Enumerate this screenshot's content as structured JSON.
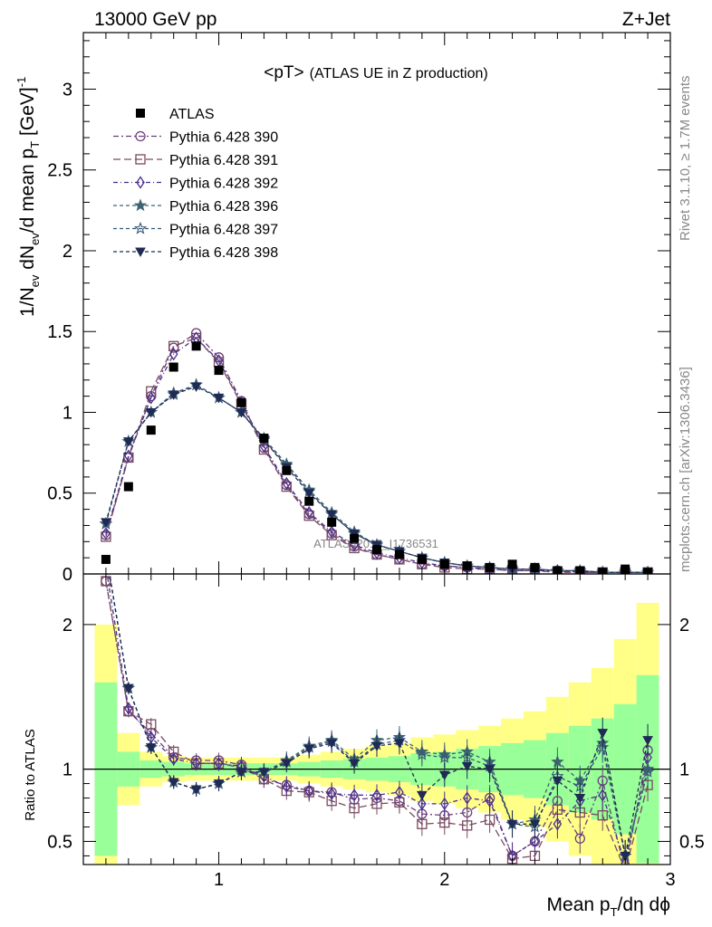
{
  "header": {
    "left": "13000 GeV pp",
    "right": "Z+Jet"
  },
  "side_labels": {
    "rivet": "Rivet 3.1.10, ≥ 1.7M events",
    "mcplots": "mcplots.cern.ch [arXiv:1306.3436]"
  },
  "watermark": "ATLAS_2019_I1736531",
  "colors": {
    "band_inner": "#99ff99",
    "band_outer": "#ffff88",
    "data": "#000000",
    "s390": "#6b3f7a",
    "s391": "#7a4a5f",
    "s392": "#4a2f8a",
    "s396": "#3d6470",
    "s397": "#3a5a78",
    "s398": "#1f2a55"
  },
  "chart_data": [
    {
      "type": "line",
      "title": "<pT>",
      "title_suffix": "(ATLAS UE in Z production)",
      "ylabel_parts": {
        "a": "1/N",
        "b": "ev",
        "c": " dN",
        "d": "ev",
        "e": "/d mean p",
        "f": "T",
        "g": " [GeV]",
        "h": "-1"
      },
      "xlim": [
        0.4,
        3.0
      ],
      "ylim": [
        0,
        3.35
      ],
      "ytick_labels": [
        "0",
        "0.5",
        "1",
        "1.5",
        "2",
        "2.5",
        "3"
      ],
      "yticks": [
        0,
        0.5,
        1,
        1.5,
        2,
        2.5,
        3
      ],
      "x": [
        0.5,
        0.6,
        0.7,
        0.8,
        0.9,
        1.0,
        1.1,
        1.2,
        1.3,
        1.4,
        1.5,
        1.6,
        1.7,
        1.8,
        1.9,
        2.0,
        2.1,
        2.2,
        2.3,
        2.4,
        2.5,
        2.6,
        2.7,
        2.8,
        2.9
      ],
      "data": {
        "name": "ATLAS",
        "values": [
          0.09,
          0.54,
          0.89,
          1.28,
          1.41,
          1.26,
          1.06,
          0.84,
          0.64,
          0.45,
          0.32,
          0.22,
          0.15,
          0.12,
          0.09,
          0.06,
          0.05,
          0.04,
          0.06,
          0.04,
          0.02,
          0.02,
          0.01,
          0.03,
          0.01
        ]
      },
      "series": [
        {
          "name": "Pythia 6.428 390",
          "marker": "circle-open",
          "dash": "6,3,2,3",
          "colorKey": "s390",
          "values": [
            0.24,
            0.72,
            1.1,
            1.4,
            1.49,
            1.34,
            1.07,
            0.78,
            0.55,
            0.37,
            0.25,
            0.17,
            0.12,
            0.09,
            0.06,
            0.05,
            0.04,
            0.03,
            0.02,
            0.02,
            0.02,
            0.01,
            0.01,
            0.01,
            0.01
          ]
        },
        {
          "name": "Pythia 6.428 391",
          "marker": "square-open",
          "dash": "8,4",
          "colorKey": "s391",
          "values": [
            0.23,
            0.72,
            1.13,
            1.41,
            1.46,
            1.31,
            1.05,
            0.77,
            0.54,
            0.36,
            0.24,
            0.16,
            0.12,
            0.09,
            0.06,
            0.04,
            0.03,
            0.03,
            0.02,
            0.02,
            0.01,
            0.01,
            0.01,
            0.01,
            0.01
          ]
        },
        {
          "name": "Pythia 6.428 392",
          "marker": "diamond-open",
          "dash": "5,3,1,3",
          "colorKey": "s392",
          "values": [
            0.25,
            0.73,
            1.09,
            1.36,
            1.46,
            1.32,
            1.06,
            0.79,
            0.56,
            0.38,
            0.26,
            0.18,
            0.13,
            0.1,
            0.07,
            0.05,
            0.04,
            0.03,
            0.02,
            0.02,
            0.02,
            0.01,
            0.01,
            0.01,
            0.01
          ]
        },
        {
          "name": "Pythia 6.428 396",
          "marker": "star-filled",
          "dash": "4,3",
          "colorKey": "s396",
          "values": [
            0.31,
            0.82,
            1.0,
            1.11,
            1.17,
            1.09,
            1.0,
            0.84,
            0.68,
            0.52,
            0.38,
            0.26,
            0.18,
            0.14,
            0.1,
            0.07,
            0.05,
            0.04,
            0.03,
            0.03,
            0.02,
            0.02,
            0.01,
            0.01,
            0.01
          ]
        },
        {
          "name": "Pythia 6.428 397",
          "marker": "star-open",
          "dash": "4,3",
          "colorKey": "s397",
          "values": [
            0.31,
            0.82,
            1.0,
            1.12,
            1.17,
            1.09,
            1.0,
            0.83,
            0.67,
            0.51,
            0.37,
            0.25,
            0.18,
            0.14,
            0.1,
            0.07,
            0.05,
            0.04,
            0.03,
            0.03,
            0.02,
            0.02,
            0.01,
            0.01,
            0.01
          ]
        },
        {
          "name": "Pythia 6.428 398",
          "marker": "triangle-down-filled",
          "dash": "4,3",
          "colorKey": "s398",
          "values": [
            0.32,
            0.82,
            1.0,
            1.11,
            1.16,
            1.09,
            1.0,
            0.83,
            0.66,
            0.5,
            0.37,
            0.25,
            0.18,
            0.14,
            0.1,
            0.07,
            0.05,
            0.04,
            0.03,
            0.03,
            0.02,
            0.02,
            0.01,
            0.01,
            0.01
          ]
        }
      ]
    },
    {
      "type": "line",
      "ylabel": "Ratio to ATLAS",
      "xlabel_parts": {
        "a": "Mean p",
        "b": "T",
        "c": "/dη dϕ"
      },
      "xlim": [
        0.4,
        3.0
      ],
      "ylim": [
        0.34,
        2.35
      ],
      "xticks": [
        1,
        2,
        3
      ],
      "xtick_labels": [
        "1",
        "2",
        "3"
      ],
      "yticks": [
        0.5,
        1,
        2
      ],
      "ytick_labels": [
        "0.5",
        "1",
        "2"
      ],
      "x": [
        0.5,
        0.6,
        0.7,
        0.8,
        0.9,
        1.0,
        1.1,
        1.2,
        1.3,
        1.4,
        1.5,
        1.6,
        1.7,
        1.8,
        1.9,
        2.0,
        2.1,
        2.2,
        2.3,
        2.4,
        2.5,
        2.6,
        2.7,
        2.8,
        2.9
      ],
      "band_inner": [
        0.6,
        0.12,
        0.06,
        0.05,
        0.04,
        0.04,
        0.04,
        0.04,
        0.04,
        0.05,
        0.06,
        0.07,
        0.08,
        0.09,
        0.11,
        0.12,
        0.14,
        0.16,
        0.18,
        0.2,
        0.25,
        0.3,
        0.35,
        0.45,
        0.65
      ],
      "band_outer": [
        1.0,
        0.25,
        0.12,
        0.09,
        0.08,
        0.08,
        0.08,
        0.08,
        0.08,
        0.1,
        0.12,
        0.14,
        0.16,
        0.18,
        0.22,
        0.24,
        0.27,
        0.3,
        0.35,
        0.4,
        0.5,
        0.6,
        0.7,
        0.9,
        1.15
      ],
      "reference": 1,
      "series": [
        {
          "name": "Pythia 6.428 390",
          "values": [
            2.3,
            1.4,
            1.25,
            1.08,
            1.06,
            1.06,
            1.03,
            0.93,
            0.89,
            0.85,
            0.84,
            0.79,
            0.8,
            0.78,
            0.69,
            0.68,
            0.7,
            0.8,
            0.4,
            0.5,
            0.78,
            0.52,
            0.92,
            0.3,
            1.13
          ]
        },
        {
          "name": "Pythia 6.428 391",
          "values": [
            2.3,
            1.4,
            1.31,
            1.12,
            1.04,
            1.04,
            1.01,
            0.93,
            0.85,
            0.84,
            0.78,
            0.73,
            0.76,
            0.77,
            0.62,
            0.63,
            0.61,
            0.65,
            0.38,
            0.4,
            0.72,
            0.7,
            0.68,
            0.3,
            0.89
          ]
        },
        {
          "name": "Pythia 6.428 392",
          "values": [
            2.4,
            1.42,
            1.22,
            1.07,
            1.04,
            1.04,
            1.02,
            0.95,
            0.88,
            0.85,
            0.83,
            0.82,
            0.82,
            0.84,
            0.76,
            0.76,
            0.8,
            0.78,
            0.4,
            0.5,
            0.62,
            0.78,
            0.82,
            0.35,
            1.08
          ]
        },
        {
          "name": "Pythia 6.428 396",
          "values": [
            2.5,
            1.56,
            1.15,
            0.91,
            0.86,
            0.9,
            0.98,
            0.98,
            1.06,
            1.16,
            1.2,
            1.07,
            1.2,
            1.22,
            1.12,
            1.1,
            1.12,
            1.05,
            0.62,
            0.65,
            1.05,
            0.92,
            1.18,
            0.4,
            1.0
          ]
        },
        {
          "name": "Pythia 6.428 397",
          "values": [
            2.5,
            1.56,
            1.15,
            0.91,
            0.86,
            0.9,
            0.98,
            0.98,
            1.05,
            1.15,
            1.19,
            1.05,
            1.17,
            1.2,
            1.1,
            1.08,
            1.08,
            1.02,
            0.62,
            0.6,
            0.95,
            0.88,
            1.15,
            0.4,
            0.98
          ]
        },
        {
          "name": "Pythia 6.428 398",
          "values": [
            2.5,
            1.56,
            1.15,
            0.91,
            0.86,
            0.9,
            0.98,
            0.98,
            1.04,
            1.14,
            1.18,
            1.04,
            1.16,
            1.18,
            0.82,
            0.96,
            1.02,
            1.0,
            0.62,
            0.62,
            0.92,
            0.8,
            1.25,
            0.4,
            1.2
          ]
        }
      ]
    }
  ]
}
